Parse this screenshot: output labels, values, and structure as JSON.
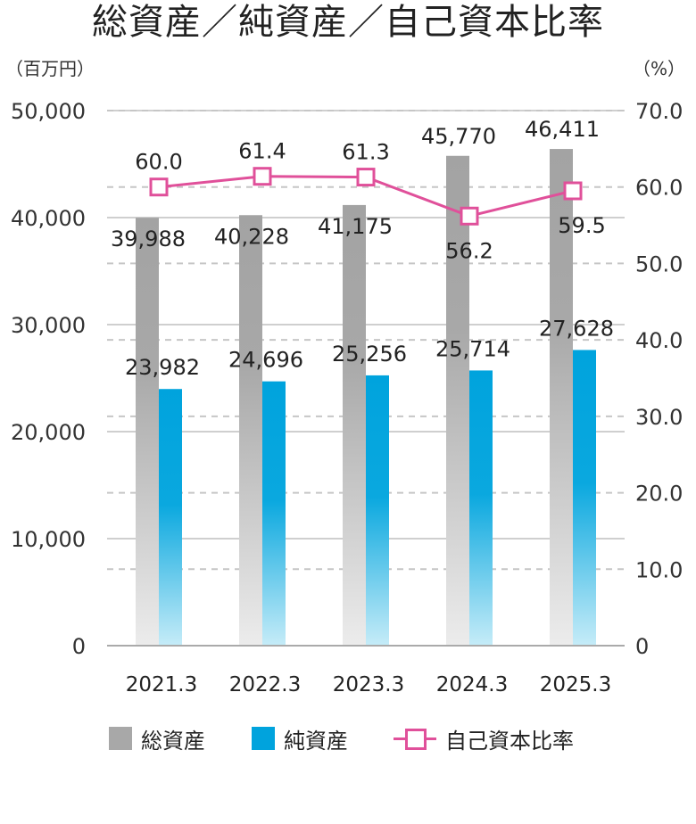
{
  "title": "総資産／純資産／自己資本比率",
  "left_unit": "（百万円）",
  "right_unit": "（%）",
  "legend": {
    "total_assets": "総資産",
    "net_assets": "純資産",
    "equity_ratio": "自己資本比率"
  },
  "colors": {
    "total_assets": "#a8a8a8",
    "net_assets": "#00a3dd",
    "equity_ratio": "#e0509a"
  },
  "chart_data": {
    "type": "bar",
    "categories": [
      "2021.3",
      "2022.3",
      "2023.3",
      "2024.3",
      "2025.3"
    ],
    "series": [
      {
        "name": "総資産",
        "type": "bar",
        "axis": "left",
        "values": [
          39988,
          40228,
          41175,
          45770,
          46411
        ],
        "labels": [
          "39,988",
          "40,228",
          "41,175",
          "45,770",
          "46,411"
        ]
      },
      {
        "name": "純資産",
        "type": "bar",
        "axis": "left",
        "values": [
          23982,
          24696,
          25256,
          25714,
          27628
        ],
        "labels": [
          "23,982",
          "24,696",
          "25,256",
          "25,714",
          "27,628"
        ]
      },
      {
        "name": "自己資本比率",
        "type": "line",
        "axis": "right",
        "values": [
          60.0,
          61.4,
          61.3,
          56.2,
          59.5
        ],
        "labels": [
          "60.0",
          "61.4",
          "61.3",
          "56.2",
          "59.5"
        ]
      }
    ],
    "left_axis": {
      "ylim": [
        0,
        50000
      ],
      "ticks": [
        "0",
        "10,000",
        "20,000",
        "30,000",
        "40,000",
        "50,000"
      ]
    },
    "right_axis": {
      "ylim": [
        0,
        70
      ],
      "ticks": [
        "0",
        "10.0",
        "20.0",
        "30.0",
        "40.0",
        "50.0",
        "60.0",
        "70.0"
      ]
    },
    "grid": true,
    "legend_position": "bottom"
  }
}
